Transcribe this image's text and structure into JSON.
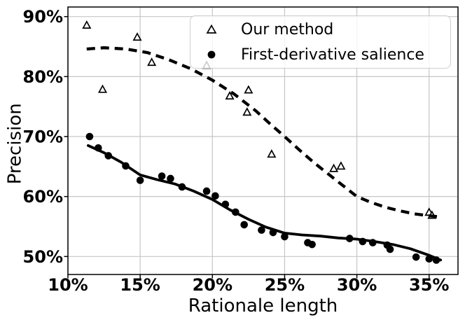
{
  "figure": {
    "background": "#ffffff",
    "foreground": "#000000",
    "grid_color": "#c6c6c6",
    "legend_border_color": "#cfcfcf"
  },
  "chart_data": {
    "type": "scatter",
    "title": "",
    "xlabel": "Rationale length",
    "ylabel": "Precision",
    "xlim": [
      10,
      37
    ],
    "ylim": [
      47,
      91.6
    ],
    "grid": true,
    "legend_position": "upper right",
    "x_tick_values": [
      10,
      15,
      20,
      25,
      30,
      35
    ],
    "x_tick_labels": [
      "10%",
      "15%",
      "20%",
      "25%",
      "30%",
      "35%"
    ],
    "y_tick_values": [
      50,
      60,
      70,
      80,
      90
    ],
    "y_tick_labels": [
      "50%",
      "60%",
      "70%",
      "80%",
      "90%"
    ],
    "series": [
      {
        "name": "Our method",
        "marker": "open-triangle-icon",
        "trend_style": "dashed",
        "points": [
          [
            11.3,
            88.5
          ],
          [
            12.4,
            77.8
          ],
          [
            14.8,
            86.5
          ],
          [
            15.8,
            82.3
          ],
          [
            19.6,
            81.8
          ],
          [
            21.2,
            76.7
          ],
          [
            22.4,
            74.0
          ],
          [
            22.5,
            77.7
          ],
          [
            24.1,
            67.0
          ],
          [
            28.4,
            64.6
          ],
          [
            28.9,
            65.0
          ],
          [
            35.0,
            57.3
          ],
          [
            35.2,
            56.8
          ]
        ],
        "trend": [
          [
            11.3,
            84.6
          ],
          [
            12.5,
            84.8
          ],
          [
            14.0,
            84.6
          ],
          [
            15.5,
            84.0
          ],
          [
            17.0,
            82.8
          ],
          [
            18.5,
            81.3
          ],
          [
            20.0,
            79.4
          ],
          [
            21.5,
            77.1
          ],
          [
            23.0,
            74.3
          ],
          [
            24.0,
            72.1
          ],
          [
            25.0,
            70.0
          ],
          [
            26.0,
            67.8
          ],
          [
            27.0,
            65.7
          ],
          [
            28.0,
            63.8
          ],
          [
            29.0,
            61.9
          ],
          [
            30.0,
            60.0
          ],
          [
            31.0,
            59.0
          ],
          [
            32.0,
            58.2
          ],
          [
            33.0,
            57.6
          ],
          [
            34.0,
            57.1
          ],
          [
            35.0,
            56.8
          ],
          [
            35.8,
            56.6
          ]
        ]
      },
      {
        "name": "First-derivative salience",
        "marker": "filled-circle-icon",
        "trend_style": "solid",
        "points": [
          [
            11.5,
            70.0
          ],
          [
            12.1,
            68.1
          ],
          [
            12.8,
            66.8
          ],
          [
            14.0,
            65.1
          ],
          [
            15.0,
            62.7
          ],
          [
            16.5,
            63.4
          ],
          [
            17.1,
            63.0
          ],
          [
            17.9,
            61.6
          ],
          [
            19.6,
            60.9
          ],
          [
            20.2,
            60.1
          ],
          [
            20.9,
            58.7
          ],
          [
            21.6,
            57.4
          ],
          [
            22.2,
            55.3
          ],
          [
            23.4,
            54.4
          ],
          [
            24.2,
            54.0
          ],
          [
            25.0,
            53.3
          ],
          [
            26.6,
            52.3
          ],
          [
            26.9,
            52.0
          ],
          [
            29.5,
            53.0
          ],
          [
            30.4,
            52.5
          ],
          [
            31.1,
            52.3
          ],
          [
            32.1,
            51.9
          ],
          [
            32.3,
            51.2
          ],
          [
            34.1,
            49.9
          ],
          [
            35.0,
            49.6
          ],
          [
            35.5,
            49.4
          ]
        ],
        "trend": [
          [
            11.4,
            68.5
          ],
          [
            12.5,
            67.3
          ],
          [
            13.7,
            65.7
          ],
          [
            15.0,
            63.6
          ],
          [
            16.2,
            62.8
          ],
          [
            17.4,
            62.1
          ],
          [
            18.7,
            60.9
          ],
          [
            20.0,
            59.5
          ],
          [
            21.2,
            57.8
          ],
          [
            22.5,
            56.2
          ],
          [
            23.7,
            54.9
          ],
          [
            25.0,
            53.9
          ],
          [
            26.2,
            53.6
          ],
          [
            27.5,
            53.4
          ],
          [
            28.7,
            53.1
          ],
          [
            30.0,
            52.9
          ],
          [
            31.2,
            52.5
          ],
          [
            32.5,
            52.0
          ],
          [
            33.7,
            51.3
          ],
          [
            35.0,
            50.2
          ],
          [
            35.8,
            49.4
          ]
        ]
      }
    ]
  }
}
